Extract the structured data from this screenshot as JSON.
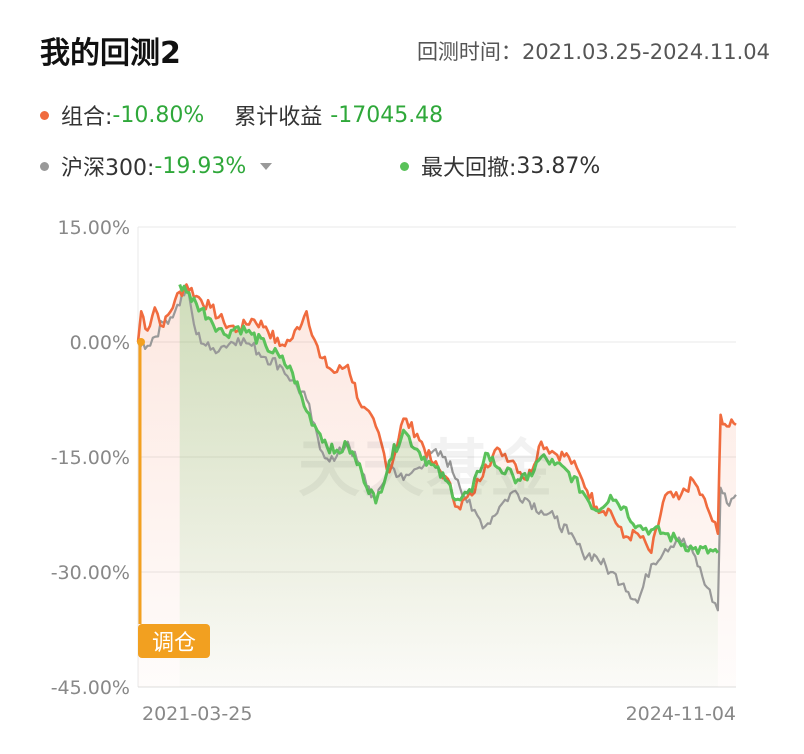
{
  "header": {
    "title": "我的回测2",
    "range_label": "回测时间：",
    "range_value": "2021.03.25-2024.11.04"
  },
  "metrics": {
    "portfolio_label": "组合:",
    "portfolio_value": "-10.80%",
    "pnl_label": "累计收益",
    "pnl_value": "-17045.48",
    "benchmark_label": "沪深300:",
    "benchmark_value": "-19.93%",
    "drawdown_label": "最大回撤:",
    "drawdown_value": "33.87%"
  },
  "colors": {
    "portfolio": "#f06b3e",
    "benchmark": "#999999",
    "drawdown": "#5ac25a",
    "negative": "#2fa83a",
    "badge": "#f2a020"
  },
  "watermark": "天天基金",
  "badge_label": "调仓",
  "chart_data": {
    "type": "line",
    "x_start": "2021-03-25",
    "x_end": "2024-11-04",
    "y_ticks": [
      "15.00%",
      "0.00%",
      "-15.00%",
      "-30.00%",
      "-45.00%"
    ],
    "ylim": [
      -45,
      15
    ],
    "grid": true,
    "x_tick_labels": [
      "2021-03-25",
      "2024-11-04"
    ],
    "series": [
      {
        "name": "组合",
        "color": "#f06b3e",
        "dates": [
          "2021-03-25",
          "2021-04-01",
          "2021-04-15",
          "2021-05-01",
          "2021-05-20",
          "2021-06-15",
          "2021-07-10",
          "2021-08-01",
          "2021-09-01",
          "2021-10-01",
          "2021-11-01",
          "2021-12-01",
          "2022-01-01",
          "2022-02-01",
          "2022-03-01",
          "2022-04-01",
          "2022-05-01",
          "2022-06-01",
          "2022-07-01",
          "2022-08-01",
          "2022-09-01",
          "2022-10-01",
          "2022-11-01",
          "2022-12-01",
          "2023-01-01",
          "2023-02-01",
          "2023-03-01",
          "2023-04-01",
          "2023-05-01",
          "2023-06-01",
          "2023-07-01",
          "2023-08-01",
          "2023-09-01",
          "2023-10-01",
          "2023-11-01",
          "2023-12-01",
          "2024-01-01",
          "2024-02-01",
          "2024-03-01",
          "2024-04-01",
          "2024-05-01",
          "2024-06-01",
          "2024-07-01",
          "2024-08-01",
          "2024-09-01",
          "2024-09-25",
          "2024-10-01",
          "2024-10-15",
          "2024-11-04"
        ],
        "values": [
          0.0,
          4.0,
          1.5,
          4.5,
          2.0,
          5.5,
          7.5,
          6.0,
          4.5,
          2.5,
          1.5,
          3.0,
          2.0,
          -0.5,
          0.5,
          4.0,
          -2.0,
          -4.0,
          -3.0,
          -8.5,
          -11.0,
          -17.0,
          -10.0,
          -12.0,
          -15.5,
          -17.5,
          -21.5,
          -20.0,
          -16.0,
          -14.0,
          -15.5,
          -18.0,
          -13.0,
          -14.5,
          -15.0,
          -18.0,
          -21.5,
          -22.0,
          -25.5,
          -25.0,
          -27.5,
          -20.0,
          -20.5,
          -18.0,
          -21.5,
          -25.0,
          -9.5,
          -11.0,
          -10.8
        ]
      },
      {
        "name": "沪深300",
        "color": "#999999",
        "dates": [
          "2021-03-25",
          "2021-04-15",
          "2021-05-20",
          "2021-06-15",
          "2021-07-10",
          "2021-08-01",
          "2021-09-01",
          "2021-10-01",
          "2021-11-01",
          "2021-12-01",
          "2022-01-01",
          "2022-02-01",
          "2022-03-01",
          "2022-04-01",
          "2022-05-01",
          "2022-06-01",
          "2022-07-01",
          "2022-08-01",
          "2022-09-01",
          "2022-10-01",
          "2022-11-01",
          "2022-12-01",
          "2023-01-01",
          "2023-02-01",
          "2023-03-01",
          "2023-04-01",
          "2023-05-01",
          "2023-06-01",
          "2023-07-01",
          "2023-08-01",
          "2023-09-01",
          "2023-10-01",
          "2023-11-01",
          "2023-12-01",
          "2024-01-01",
          "2024-02-01",
          "2024-03-01",
          "2024-04-01",
          "2024-05-01",
          "2024-06-01",
          "2024-07-01",
          "2024-08-01",
          "2024-09-01",
          "2024-09-25",
          "2024-10-01",
          "2024-10-15",
          "2024-11-04"
        ],
        "values": [
          0.0,
          -0.5,
          2.5,
          4.0,
          7.0,
          1.0,
          -1.0,
          -0.5,
          0.5,
          -0.5,
          -2.0,
          -3.0,
          -5.0,
          -7.5,
          -14.0,
          -15.5,
          -13.0,
          -17.0,
          -21.0,
          -16.0,
          -18.0,
          -16.5,
          -14.5,
          -15.0,
          -18.0,
          -22.0,
          -24.0,
          -21.5,
          -19.5,
          -20.5,
          -22.0,
          -23.0,
          -25.0,
          -27.5,
          -28.0,
          -30.0,
          -31.5,
          -34.0,
          -29.0,
          -27.0,
          -25.5,
          -27.5,
          -32.0,
          -35.0,
          -19.0,
          -21.0,
          -19.93
        ]
      },
      {
        "name": "最大回撤",
        "color": "#5ac25a",
        "dates": [
          "2021-06-25",
          "2021-07-10",
          "2021-08-01",
          "2021-09-01",
          "2021-10-01",
          "2021-11-01",
          "2021-12-01",
          "2022-01-01",
          "2022-02-01",
          "2022-03-01",
          "2022-04-01",
          "2022-05-01",
          "2022-06-01",
          "2022-07-01",
          "2022-08-01",
          "2022-09-01",
          "2022-10-01",
          "2022-11-01",
          "2022-12-01",
          "2023-01-01",
          "2023-02-01",
          "2023-03-01",
          "2023-04-01",
          "2023-05-01",
          "2023-06-01",
          "2023-07-01",
          "2023-08-01",
          "2023-09-01",
          "2023-10-01",
          "2023-11-01",
          "2023-12-01",
          "2024-01-01",
          "2024-02-01",
          "2024-03-01",
          "2024-04-01",
          "2024-05-01",
          "2024-06-01",
          "2024-07-01",
          "2024-08-01",
          "2024-09-25"
        ],
        "values": [
          7.5,
          6.5,
          5.0,
          3.0,
          1.0,
          2.0,
          1.0,
          -0.5,
          -2.0,
          -4.0,
          -9.0,
          -12.0,
          -14.5,
          -13.5,
          -17.0,
          -21.0,
          -15.5,
          -11.5,
          -14.0,
          -16.0,
          -18.0,
          -20.5,
          -19.5,
          -14.5,
          -16.5,
          -17.5,
          -18.0,
          -15.0,
          -16.0,
          -17.0,
          -19.5,
          -22.0,
          -20.0,
          -21.5,
          -24.0,
          -24.5,
          -25.0,
          -26.0,
          -27.0,
          -27.5
        ]
      }
    ]
  }
}
